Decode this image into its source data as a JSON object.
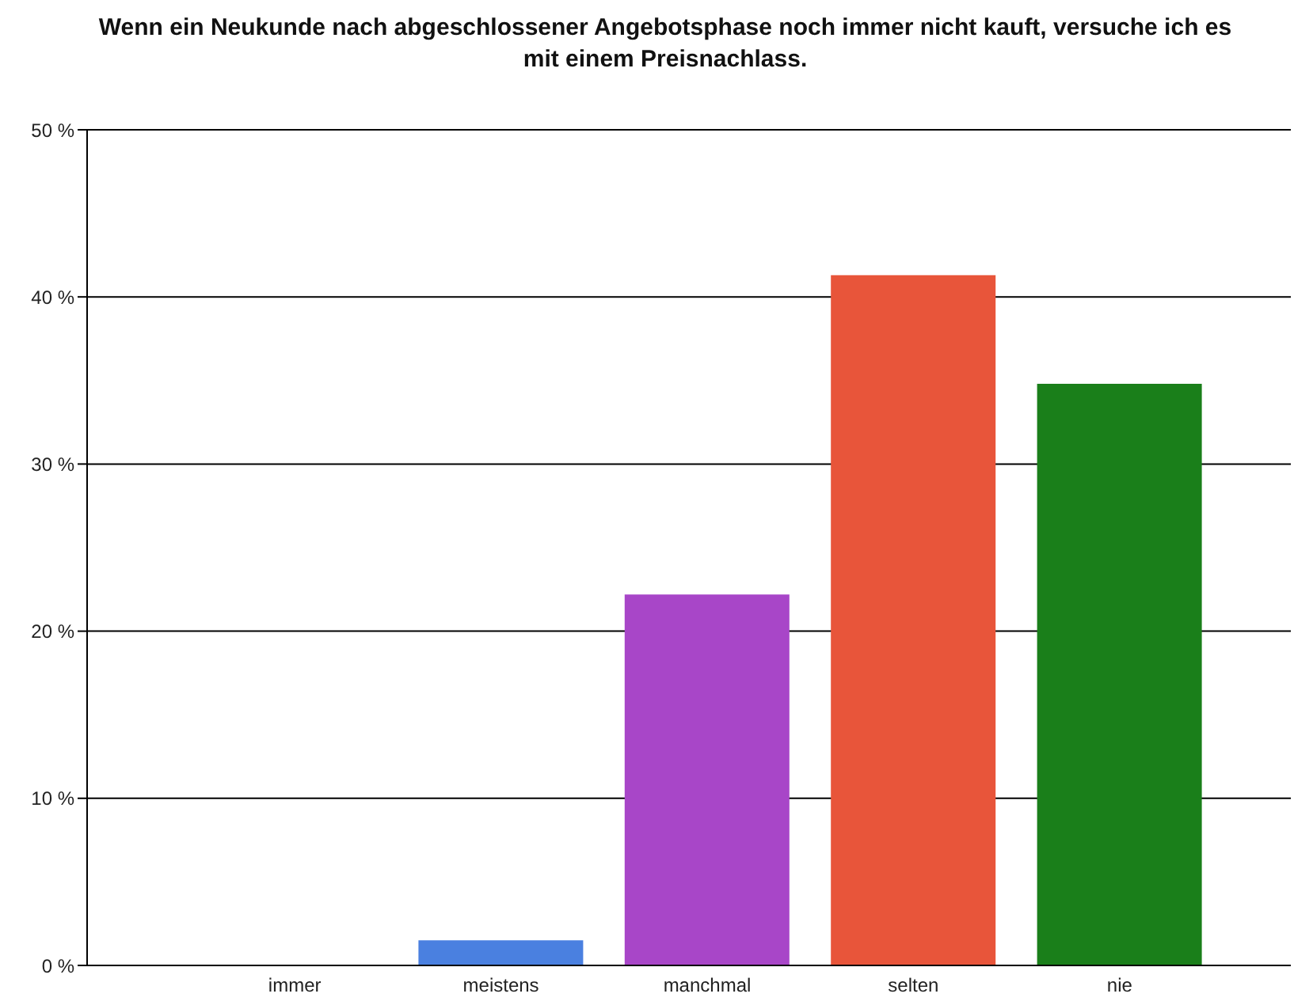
{
  "chart_data": {
    "type": "bar",
    "title": "Wenn ein Neukunde nach abgeschlossener Angebotsphase noch immer nicht kauft, versuche ich es mit einem Preisnachlass.",
    "categories": [
      "immer",
      "meistens",
      "manchmal",
      "selten",
      "nie"
    ],
    "values": [
      0,
      1.5,
      22.2,
      41.3,
      34.8
    ],
    "colors": [
      "#4a80e0",
      "#4a80e0",
      "#a846c8",
      "#e8553a",
      "#1a7f1a"
    ],
    "ylim": [
      0,
      50
    ],
    "yticks": [
      {
        "value": 0,
        "label": "0 %"
      },
      {
        "value": 10,
        "label": "10 %"
      },
      {
        "value": 20,
        "label": "20 %"
      },
      {
        "value": 30,
        "label": "30 %"
      },
      {
        "value": 40,
        "label": "40 %"
      },
      {
        "value": 50,
        "label": "50 %"
      }
    ],
    "grid": "y"
  }
}
